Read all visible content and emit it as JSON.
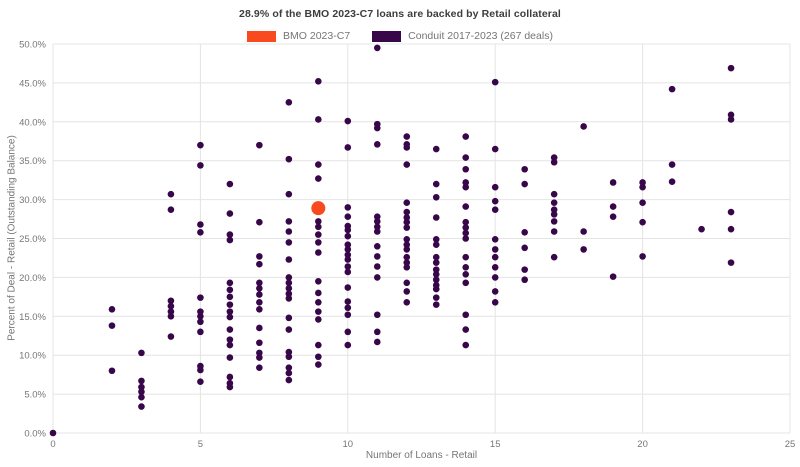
{
  "title": "28.9% of the BMO 2023-C7 loans are backed by Retail collateral",
  "legend": [
    {
      "label": "BMO 2023-C7",
      "color": "#f8491f"
    },
    {
      "label": "Conduit 2017-2023 (267 deals)",
      "color": "#38074a"
    }
  ],
  "chart_data": {
    "type": "scatter",
    "title": "28.9% of the BMO 2023-C7 loans are backed by Retail collateral",
    "xlabel": "Number of Loans - Retail",
    "ylabel": "Percent of Deal - Retail (Outstanding Balance)",
    "xlim": [
      0,
      25
    ],
    "ylim": [
      0,
      50
    ],
    "x_ticks": [
      "0",
      "5",
      "10",
      "15",
      "20",
      "25"
    ],
    "x_tick_values": [
      0,
      5,
      10,
      15,
      20,
      25
    ],
    "y_ticks": [
      "0.0%",
      "5.0%",
      "10.0%",
      "15.0%",
      "20.0%",
      "25.0%",
      "30.0%",
      "35.0%",
      "40.0%",
      "45.0%",
      "50.0%"
    ],
    "y_tick_values": [
      0,
      5,
      10,
      15,
      20,
      25,
      30,
      35,
      40,
      45,
      50
    ],
    "grid": true,
    "legend_position": "top",
    "series": [
      {
        "name": "Conduit 2017-2023 (267 deals)",
        "color": "#38074a",
        "marker_radius": 3.3,
        "points": [
          [
            0,
            0.0
          ],
          [
            2,
            15.9
          ],
          [
            2,
            13.8
          ],
          [
            2,
            8.0
          ],
          [
            3,
            10.3
          ],
          [
            3,
            6.7
          ],
          [
            3,
            5.9
          ],
          [
            3,
            5.3
          ],
          [
            3,
            4.6
          ],
          [
            3,
            3.4
          ],
          [
            4,
            30.7
          ],
          [
            4,
            28.7
          ],
          [
            4,
            17.0
          ],
          [
            4,
            16.3
          ],
          [
            4,
            15.6
          ],
          [
            4,
            15.0
          ],
          [
            4,
            12.4
          ],
          [
            5,
            37.0
          ],
          [
            5,
            34.4
          ],
          [
            5,
            26.8
          ],
          [
            5,
            25.8
          ],
          [
            5,
            17.4
          ],
          [
            5,
            15.6
          ],
          [
            5,
            15.0
          ],
          [
            5,
            14.3
          ],
          [
            5,
            13.0
          ],
          [
            5,
            8.6
          ],
          [
            5,
            8.1
          ],
          [
            5,
            6.6
          ],
          [
            6,
            32.0
          ],
          [
            6,
            28.2
          ],
          [
            6,
            25.5
          ],
          [
            6,
            24.8
          ],
          [
            6,
            19.3
          ],
          [
            6,
            18.4
          ],
          [
            6,
            17.5
          ],
          [
            6,
            16.5
          ],
          [
            6,
            15.6
          ],
          [
            6,
            14.9
          ],
          [
            6,
            13.3
          ],
          [
            6,
            12.0
          ],
          [
            6,
            11.3
          ],
          [
            6,
            9.7
          ],
          [
            6,
            7.2
          ],
          [
            6,
            6.4
          ],
          [
            6,
            5.9
          ],
          [
            7,
            37.0
          ],
          [
            7,
            27.1
          ],
          [
            7,
            22.7
          ],
          [
            7,
            21.7
          ],
          [
            7,
            19.3
          ],
          [
            7,
            18.6
          ],
          [
            7,
            17.8
          ],
          [
            7,
            16.8
          ],
          [
            7,
            15.9
          ],
          [
            7,
            13.5
          ],
          [
            7,
            11.6
          ],
          [
            7,
            10.3
          ],
          [
            7,
            9.7
          ],
          [
            7,
            8.4
          ],
          [
            8,
            42.5
          ],
          [
            8,
            35.2
          ],
          [
            8,
            30.7
          ],
          [
            8,
            27.2
          ],
          [
            8,
            25.9
          ],
          [
            8,
            24.5
          ],
          [
            8,
            22.3
          ],
          [
            8,
            20.0
          ],
          [
            8,
            19.3
          ],
          [
            8,
            18.6
          ],
          [
            8,
            17.9
          ],
          [
            8,
            17.3
          ],
          [
            8,
            14.8
          ],
          [
            8,
            13.3
          ],
          [
            8,
            10.4
          ],
          [
            8,
            9.8
          ],
          [
            8,
            8.4
          ],
          [
            8,
            7.7
          ],
          [
            8,
            6.8
          ],
          [
            9,
            45.2
          ],
          [
            9,
            40.3
          ],
          [
            9,
            34.5
          ],
          [
            9,
            32.7
          ],
          [
            9,
            27.2
          ],
          [
            9,
            26.5
          ],
          [
            9,
            25.5
          ],
          [
            9,
            24.5
          ],
          [
            9,
            23.2
          ],
          [
            9,
            19.5
          ],
          [
            9,
            18.0
          ],
          [
            9,
            16.8
          ],
          [
            9,
            15.6
          ],
          [
            9,
            14.6
          ],
          [
            9,
            11.3
          ],
          [
            9,
            9.8
          ],
          [
            9,
            8.8
          ],
          [
            10,
            40.1
          ],
          [
            10,
            36.7
          ],
          [
            10,
            29.0
          ],
          [
            10,
            27.8
          ],
          [
            10,
            26.6
          ],
          [
            10,
            26.1
          ],
          [
            10,
            25.3
          ],
          [
            10,
            24.2
          ],
          [
            10,
            23.6
          ],
          [
            10,
            22.9
          ],
          [
            10,
            22.3
          ],
          [
            10,
            21.4
          ],
          [
            10,
            20.7
          ],
          [
            10,
            18.7
          ],
          [
            10,
            16.9
          ],
          [
            10,
            16.1
          ],
          [
            10,
            15.2
          ],
          [
            10,
            13.0
          ],
          [
            10,
            11.3
          ],
          [
            11,
            49.5
          ],
          [
            11,
            39.7
          ],
          [
            11,
            39.2
          ],
          [
            11,
            37.1
          ],
          [
            11,
            27.8
          ],
          [
            11,
            27.2
          ],
          [
            11,
            26.5
          ],
          [
            11,
            25.9
          ],
          [
            11,
            24.0
          ],
          [
            11,
            22.7
          ],
          [
            11,
            21.4
          ],
          [
            11,
            20.0
          ],
          [
            11,
            15.2
          ],
          [
            11,
            13.0
          ],
          [
            11,
            11.7
          ],
          [
            12,
            38.1
          ],
          [
            12,
            37.1
          ],
          [
            12,
            36.7
          ],
          [
            12,
            34.5
          ],
          [
            12,
            29.6
          ],
          [
            12,
            28.4
          ],
          [
            12,
            27.7
          ],
          [
            12,
            27.1
          ],
          [
            12,
            26.4
          ],
          [
            12,
            24.9
          ],
          [
            12,
            24.2
          ],
          [
            12,
            23.6
          ],
          [
            12,
            22.6
          ],
          [
            12,
            21.9
          ],
          [
            12,
            21.3
          ],
          [
            12,
            19.3
          ],
          [
            12,
            18.2
          ],
          [
            12,
            16.8
          ],
          [
            13,
            36.5
          ],
          [
            13,
            32.0
          ],
          [
            13,
            30.3
          ],
          [
            13,
            27.7
          ],
          [
            13,
            24.9
          ],
          [
            13,
            24.2
          ],
          [
            13,
            22.6
          ],
          [
            13,
            21.9
          ],
          [
            13,
            21.0
          ],
          [
            13,
            20.4
          ],
          [
            13,
            19.7
          ],
          [
            13,
            19.0
          ],
          [
            13,
            18.5
          ],
          [
            13,
            17.4
          ],
          [
            13,
            16.5
          ],
          [
            14,
            38.1
          ],
          [
            14,
            35.4
          ],
          [
            14,
            33.9
          ],
          [
            14,
            32.2
          ],
          [
            14,
            31.6
          ],
          [
            14,
            29.1
          ],
          [
            14,
            27.1
          ],
          [
            14,
            26.4
          ],
          [
            14,
            25.7
          ],
          [
            14,
            25.0
          ],
          [
            14,
            22.6
          ],
          [
            14,
            21.3
          ],
          [
            14,
            20.4
          ],
          [
            14,
            19.3
          ],
          [
            14,
            15.2
          ],
          [
            14,
            13.3
          ],
          [
            14,
            11.3
          ],
          [
            15,
            45.1
          ],
          [
            15,
            36.5
          ],
          [
            15,
            31.6
          ],
          [
            15,
            29.8
          ],
          [
            15,
            28.7
          ],
          [
            15,
            24.9
          ],
          [
            15,
            23.6
          ],
          [
            15,
            22.6
          ],
          [
            15,
            21.3
          ],
          [
            15,
            20.0
          ],
          [
            15,
            18.2
          ],
          [
            15,
            16.8
          ],
          [
            16,
            33.9
          ],
          [
            16,
            32.0
          ],
          [
            16,
            25.8
          ],
          [
            16,
            23.8
          ],
          [
            16,
            21.0
          ],
          [
            16,
            19.7
          ],
          [
            17,
            35.4
          ],
          [
            17,
            34.8
          ],
          [
            17,
            30.7
          ],
          [
            17,
            29.6
          ],
          [
            17,
            28.7
          ],
          [
            17,
            28.1
          ],
          [
            17,
            27.2
          ],
          [
            17,
            25.9
          ],
          [
            17,
            22.6
          ],
          [
            18,
            39.4
          ],
          [
            18,
            25.9
          ],
          [
            18,
            23.6
          ],
          [
            19,
            32.2
          ],
          [
            19,
            29.1
          ],
          [
            19,
            27.8
          ],
          [
            19,
            20.1
          ],
          [
            20,
            32.2
          ],
          [
            20,
            31.6
          ],
          [
            20,
            29.6
          ],
          [
            20,
            27.1
          ],
          [
            20,
            22.7
          ],
          [
            21,
            44.2
          ],
          [
            21,
            34.5
          ],
          [
            21,
            32.3
          ],
          [
            22,
            26.2
          ],
          [
            23,
            46.9
          ],
          [
            23,
            40.9
          ],
          [
            23,
            40.3
          ],
          [
            23,
            28.4
          ],
          [
            23,
            26.2
          ],
          [
            23,
            21.9
          ]
        ]
      },
      {
        "name": "BMO 2023-C7",
        "color": "#f8491f",
        "marker_radius": 7,
        "points": [
          [
            9,
            28.9
          ]
        ]
      }
    ]
  }
}
